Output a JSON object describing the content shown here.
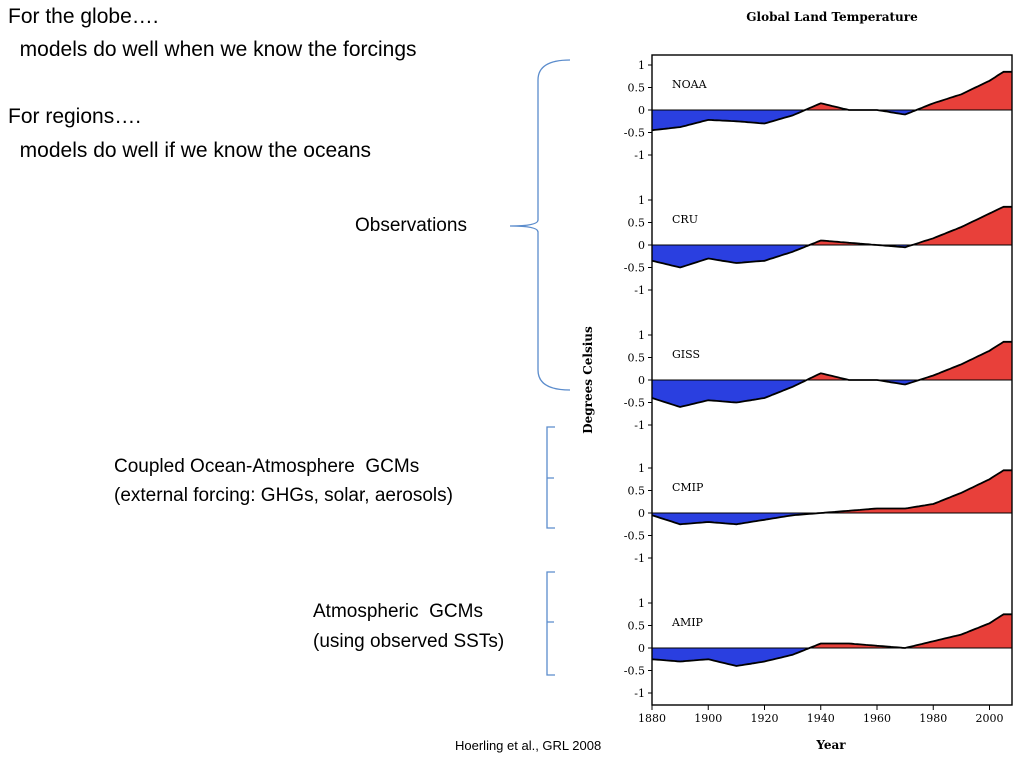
{
  "slide": {
    "line1": "For the globe….",
    "line2": "  models do well when we know the forcings",
    "line3": "For regions….",
    "line4": "  models do well if we know the oceans",
    "observations_label": "Observations",
    "coupled_label_1": "Coupled Ocean-Atmosphere  GCMs",
    "coupled_label_2": "(external forcing: GHGs, solar, aerosols)",
    "atmos_label_1": "Atmospheric  GCMs",
    "atmos_label_2": "(using observed SSTs)",
    "citation": "Hoerling et al., GRL 2008"
  },
  "colors": {
    "warm": "#e8403a",
    "cool": "#2a3fe0",
    "bracket": "#5b8ccc",
    "line": "#000000"
  },
  "chart_data": {
    "type": "bar",
    "title": "Global Land Temperature",
    "xlabel": "Year",
    "ylabel": "Degrees Celsius",
    "xlim": [
      1880,
      2008
    ],
    "ylim": [
      -1,
      1
    ],
    "x_ticks": [
      1880,
      1900,
      1920,
      1940,
      1960,
      1980,
      2000
    ],
    "y_ticks": [
      "1",
      "0.5",
      "0",
      "-0.5",
      "-1"
    ],
    "panels": [
      {
        "name": "NOAA",
        "x": [
          1880,
          1890,
          1900,
          1910,
          1920,
          1930,
          1940,
          1950,
          1960,
          1970,
          1980,
          1990,
          2000,
          2005
        ],
        "smooth": [
          -0.45,
          -0.38,
          -0.22,
          -0.25,
          -0.3,
          -0.12,
          0.15,
          0.0,
          0.0,
          -0.1,
          0.15,
          0.35,
          0.65,
          0.85
        ]
      },
      {
        "name": "CRU",
        "x": [
          1880,
          1890,
          1900,
          1910,
          1920,
          1930,
          1940,
          1950,
          1960,
          1970,
          1980,
          1990,
          2000,
          2005
        ],
        "smooth": [
          -0.35,
          -0.5,
          -0.3,
          -0.4,
          -0.35,
          -0.15,
          0.1,
          0.05,
          0.0,
          -0.05,
          0.15,
          0.4,
          0.7,
          0.85
        ]
      },
      {
        "name": "GISS",
        "x": [
          1880,
          1890,
          1900,
          1910,
          1920,
          1930,
          1940,
          1950,
          1960,
          1970,
          1980,
          1990,
          2000,
          2005
        ],
        "smooth": [
          -0.4,
          -0.6,
          -0.45,
          -0.5,
          -0.4,
          -0.15,
          0.15,
          0.0,
          0.0,
          -0.1,
          0.1,
          0.35,
          0.65,
          0.85
        ]
      },
      {
        "name": "CMIP",
        "x": [
          1880,
          1890,
          1900,
          1910,
          1920,
          1930,
          1940,
          1950,
          1960,
          1970,
          1980,
          1990,
          2000,
          2005
        ],
        "smooth": [
          -0.05,
          -0.25,
          -0.2,
          -0.25,
          -0.15,
          -0.05,
          0.0,
          0.05,
          0.1,
          0.1,
          0.2,
          0.45,
          0.75,
          0.95
        ]
      },
      {
        "name": "AMIP",
        "x": [
          1880,
          1890,
          1900,
          1910,
          1920,
          1930,
          1940,
          1950,
          1960,
          1970,
          1980,
          1990,
          2000,
          2005
        ],
        "smooth": [
          -0.25,
          -0.3,
          -0.25,
          -0.4,
          -0.3,
          -0.15,
          0.1,
          0.1,
          0.05,
          0.0,
          0.15,
          0.3,
          0.55,
          0.75
        ]
      }
    ]
  }
}
